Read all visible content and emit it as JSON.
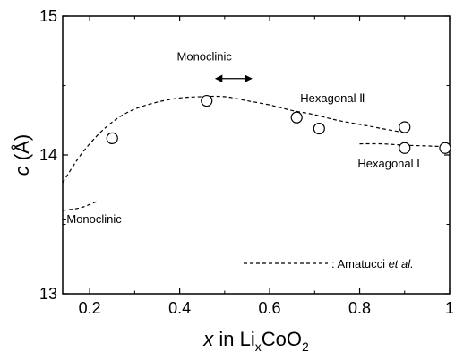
{
  "chart_data": {
    "type": "scatter",
    "xlim": [
      0.14,
      1.0
    ],
    "ylim": [
      13,
      15
    ],
    "x_ticks": [
      0.2,
      0.4,
      0.6,
      0.8,
      1.0
    ],
    "x_tick_labels": [
      "0.2",
      "0.4",
      "0.6",
      "0.8",
      "1"
    ],
    "y_ticks": [
      13,
      14,
      15
    ],
    "y_tick_labels": [
      "13",
      "14",
      "15"
    ],
    "xlabel": {
      "var": "x",
      "rest": " in Li",
      "sub1": "x",
      "mid": "CoO",
      "sub2": "2"
    },
    "ylabel": {
      "var": "c",
      "unit": " (Å)"
    },
    "points": [
      {
        "x": 0.25,
        "y": 14.12
      },
      {
        "x": 0.46,
        "y": 14.39
      },
      {
        "x": 0.66,
        "y": 14.27
      },
      {
        "x": 0.71,
        "y": 14.19
      },
      {
        "x": 0.9,
        "y": 14.2
      },
      {
        "x": 0.9,
        "y": 14.05
      },
      {
        "x": 0.99,
        "y": 14.05
      }
    ],
    "dashed_curves": [
      {
        "points": [
          [
            0.14,
            13.8
          ],
          [
            0.18,
            14.0
          ],
          [
            0.22,
            14.15
          ],
          [
            0.26,
            14.26
          ],
          [
            0.3,
            14.33
          ],
          [
            0.35,
            14.38
          ],
          [
            0.4,
            14.41
          ],
          [
            0.45,
            14.42
          ],
          [
            0.5,
            14.42
          ],
          [
            0.55,
            14.39
          ],
          [
            0.6,
            14.36
          ],
          [
            0.65,
            14.32
          ],
          [
            0.7,
            14.29
          ],
          [
            0.75,
            14.25
          ],
          [
            0.8,
            14.22
          ],
          [
            0.85,
            14.19
          ],
          [
            0.9,
            14.16
          ]
        ]
      },
      {
        "points": [
          [
            0.14,
            13.6
          ],
          [
            0.18,
            13.62
          ],
          [
            0.22,
            13.67
          ]
        ]
      },
      {
        "points": [
          [
            0.8,
            14.08
          ],
          [
            0.85,
            14.08
          ],
          [
            0.9,
            14.07
          ],
          [
            0.95,
            14.065
          ],
          [
            0.99,
            14.06
          ]
        ]
      }
    ],
    "annotations": [
      {
        "text": "Monoclinic",
        "x": 0.455,
        "y": 14.68
      },
      {
        "text": "Hexagonal Ⅱ",
        "x": 0.74,
        "y": 14.38
      },
      {
        "text": "Hexagonal Ⅰ",
        "x": 0.865,
        "y": 13.91
      },
      {
        "text": "-Monoclinic",
        "x": 0.14,
        "y": 13.51
      }
    ],
    "arrow": {
      "x1": 0.48,
      "x2": 0.56,
      "y": 14.55
    },
    "legend": {
      "entries": [
        {
          "style": "dashed",
          "label_prefix": ": Amatucci ",
          "label_italic": "et al."
        }
      ],
      "position": "lower-right"
    }
  }
}
